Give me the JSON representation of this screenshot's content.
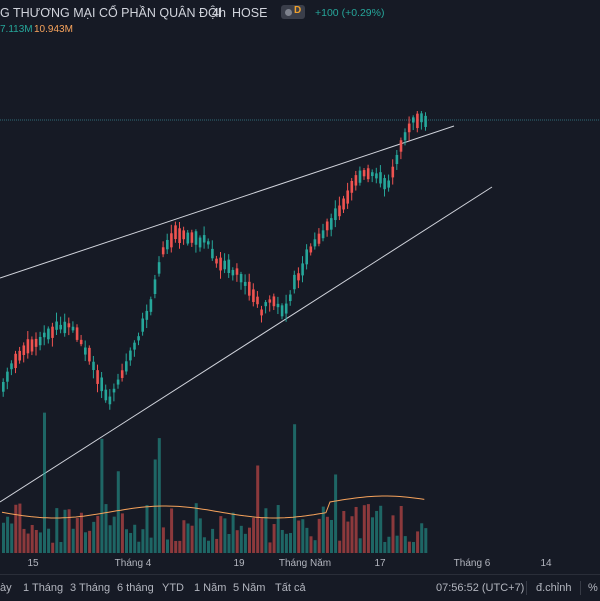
{
  "header": {
    "title": "G THƯƠNG MẠI CỔ PHẦN QUÂN ĐỘI",
    "timeframe": "4h",
    "exchange": "HOSE",
    "badge_letter": "D",
    "change": "+100 (+0.29%)",
    "volume_value": "7.113M",
    "volume_ma": "10.943M",
    "colors": {
      "up": "#26a69a",
      "down": "#ef5350",
      "ma": "#f7a35c"
    }
  },
  "x_axis": {
    "labels": [
      "15",
      "Tháng 4",
      "19",
      "Tháng Năm",
      "17",
      "Tháng 6",
      "14"
    ]
  },
  "bottom_bar": {
    "ranges": [
      "ày",
      "1 Tháng",
      "3 Tháng",
      "6 tháng",
      "YTD",
      "1 Năm",
      "5 Năm",
      "Tất cả"
    ],
    "clock": "07:56:52 (UTC+7)",
    "adjust": "đ.chỉnh",
    "percent": "%"
  }
}
